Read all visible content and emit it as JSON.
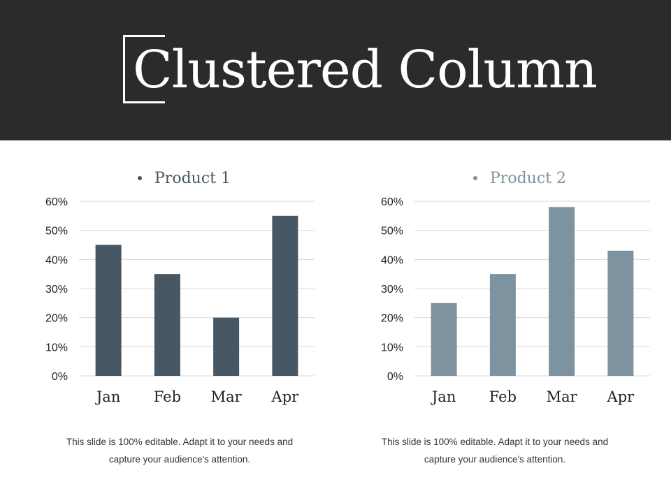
{
  "header": {
    "title": "Clustered Column"
  },
  "chart_data": [
    {
      "type": "bar",
      "categories": [
        "Jan",
        "Feb",
        "Mar",
        "Apr"
      ],
      "series": [
        {
          "name": "Product 1",
          "values": [
            45,
            35,
            20,
            55
          ]
        }
      ],
      "yticks": [
        "0%",
        "10%",
        "20%",
        "30%",
        "40%",
        "50%",
        "60%"
      ],
      "ylim": [
        0,
        60
      ],
      "legend": "top",
      "grid": true,
      "color": "#475763",
      "legend_color": "#475763"
    },
    {
      "type": "bar",
      "categories": [
        "Jan",
        "Feb",
        "Mar",
        "Apr"
      ],
      "series": [
        {
          "name": "Product 2",
          "values": [
            25,
            35,
            58,
            43
          ]
        }
      ],
      "yticks": [
        "0%",
        "10%",
        "20%",
        "30%",
        "40%",
        "50%",
        "60%"
      ],
      "ylim": [
        0,
        60
      ],
      "legend": "top",
      "grid": true,
      "color": "#7d939f",
      "legend_color": "#7d939f"
    }
  ],
  "captions": [
    {
      "line1": "This slide is 100% editable. Adapt it to your needs and",
      "line2": "capture your audience's attention."
    },
    {
      "line1": "This slide is 100% editable. Adapt it to your needs and",
      "line2": "capture your audience's attention."
    }
  ]
}
